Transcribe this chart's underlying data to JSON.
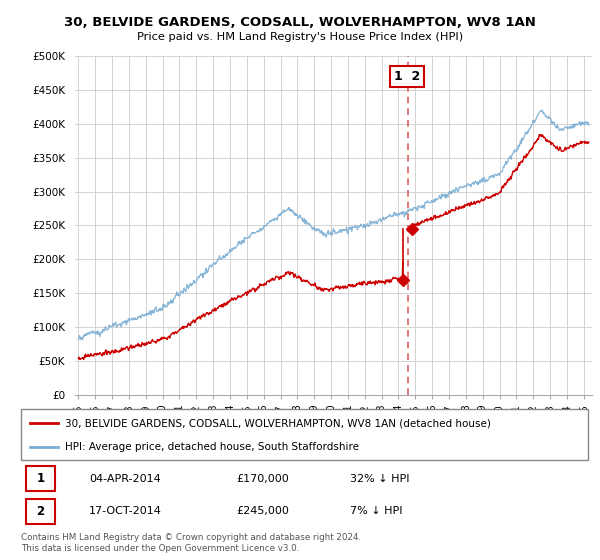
{
  "title": "30, BELVIDE GARDENS, CODSALL, WOLVERHAMPTON, WV8 1AN",
  "subtitle": "Price paid vs. HM Land Registry's House Price Index (HPI)",
  "ylabel_ticks": [
    "£0",
    "£50K",
    "£100K",
    "£150K",
    "£200K",
    "£250K",
    "£300K",
    "£350K",
    "£400K",
    "£450K",
    "£500K"
  ],
  "ytick_vals": [
    0,
    50000,
    100000,
    150000,
    200000,
    250000,
    300000,
    350000,
    400000,
    450000,
    500000
  ],
  "ylim": [
    0,
    500000
  ],
  "xlim_start": 1994.8,
  "xlim_end": 2025.5,
  "hpi_color": "#7aadd4",
  "price_color": "#cc0000",
  "vline_color": "#dd4444",
  "transaction1_x": 2014.27,
  "transaction1_y": 170000,
  "transaction2_x": 2014.8,
  "transaction2_y": 245000,
  "transaction1_label": "1",
  "transaction2_label": "2",
  "vline_x": 2014.55,
  "legend_line1": "30, BELVIDE GARDENS, CODSALL, WOLVERHAMPTON, WV8 1AN (detached house)",
  "legend_line2": "HPI: Average price, detached house, South Staffordshire",
  "table_row1": [
    "1",
    "04-APR-2014",
    "£170,000",
    "32% ↓ HPI"
  ],
  "table_row2": [
    "2",
    "17-OCT-2014",
    "£245,000",
    "7% ↓ HPI"
  ],
  "footnote": "Contains HM Land Registry data © Crown copyright and database right 2024.\nThis data is licensed under the Open Government Licence v3.0.",
  "background_color": "#ffffff",
  "grid_color": "#cccccc"
}
